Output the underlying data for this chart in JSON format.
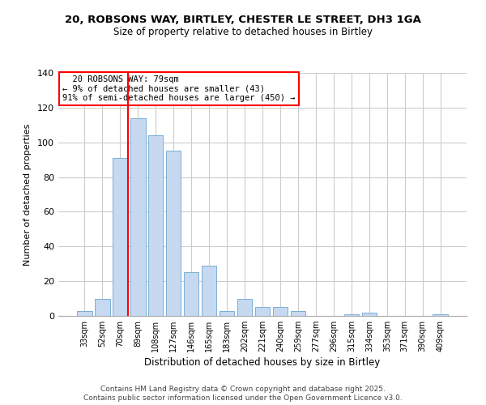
{
  "title_line1": "20, ROBSONS WAY, BIRTLEY, CHESTER LE STREET, DH3 1GA",
  "title_line2": "Size of property relative to detached houses in Birtley",
  "xlabel": "Distribution of detached houses by size in Birtley",
  "ylabel": "Number of detached properties",
  "bar_labels": [
    "33sqm",
    "52sqm",
    "70sqm",
    "89sqm",
    "108sqm",
    "127sqm",
    "146sqm",
    "165sqm",
    "183sqm",
    "202sqm",
    "221sqm",
    "240sqm",
    "259sqm",
    "277sqm",
    "296sqm",
    "315sqm",
    "334sqm",
    "353sqm",
    "371sqm",
    "390sqm",
    "409sqm"
  ],
  "bar_values": [
    3,
    10,
    91,
    114,
    104,
    95,
    25,
    29,
    3,
    10,
    5,
    5,
    3,
    0,
    0,
    1,
    2,
    0,
    0,
    0,
    1
  ],
  "bar_color": "#c6d9f1",
  "bar_edge_color": "#7bafd4",
  "vline_color": "red",
  "annotation_title": "20 ROBSONS WAY: 79sqm",
  "annotation_line1": "← 9% of detached houses are smaller (43)",
  "annotation_line2": "91% of semi-detached houses are larger (450) →",
  "annotation_box_color": "white",
  "annotation_box_edge_color": "red",
  "ylim": [
    0,
    140
  ],
  "yticks": [
    0,
    20,
    40,
    60,
    80,
    100,
    120,
    140
  ],
  "footer_line1": "Contains HM Land Registry data © Crown copyright and database right 2025.",
  "footer_line2": "Contains public sector information licensed under the Open Government Licence v3.0.",
  "background_color": "white",
  "grid_color": "#cccccc"
}
